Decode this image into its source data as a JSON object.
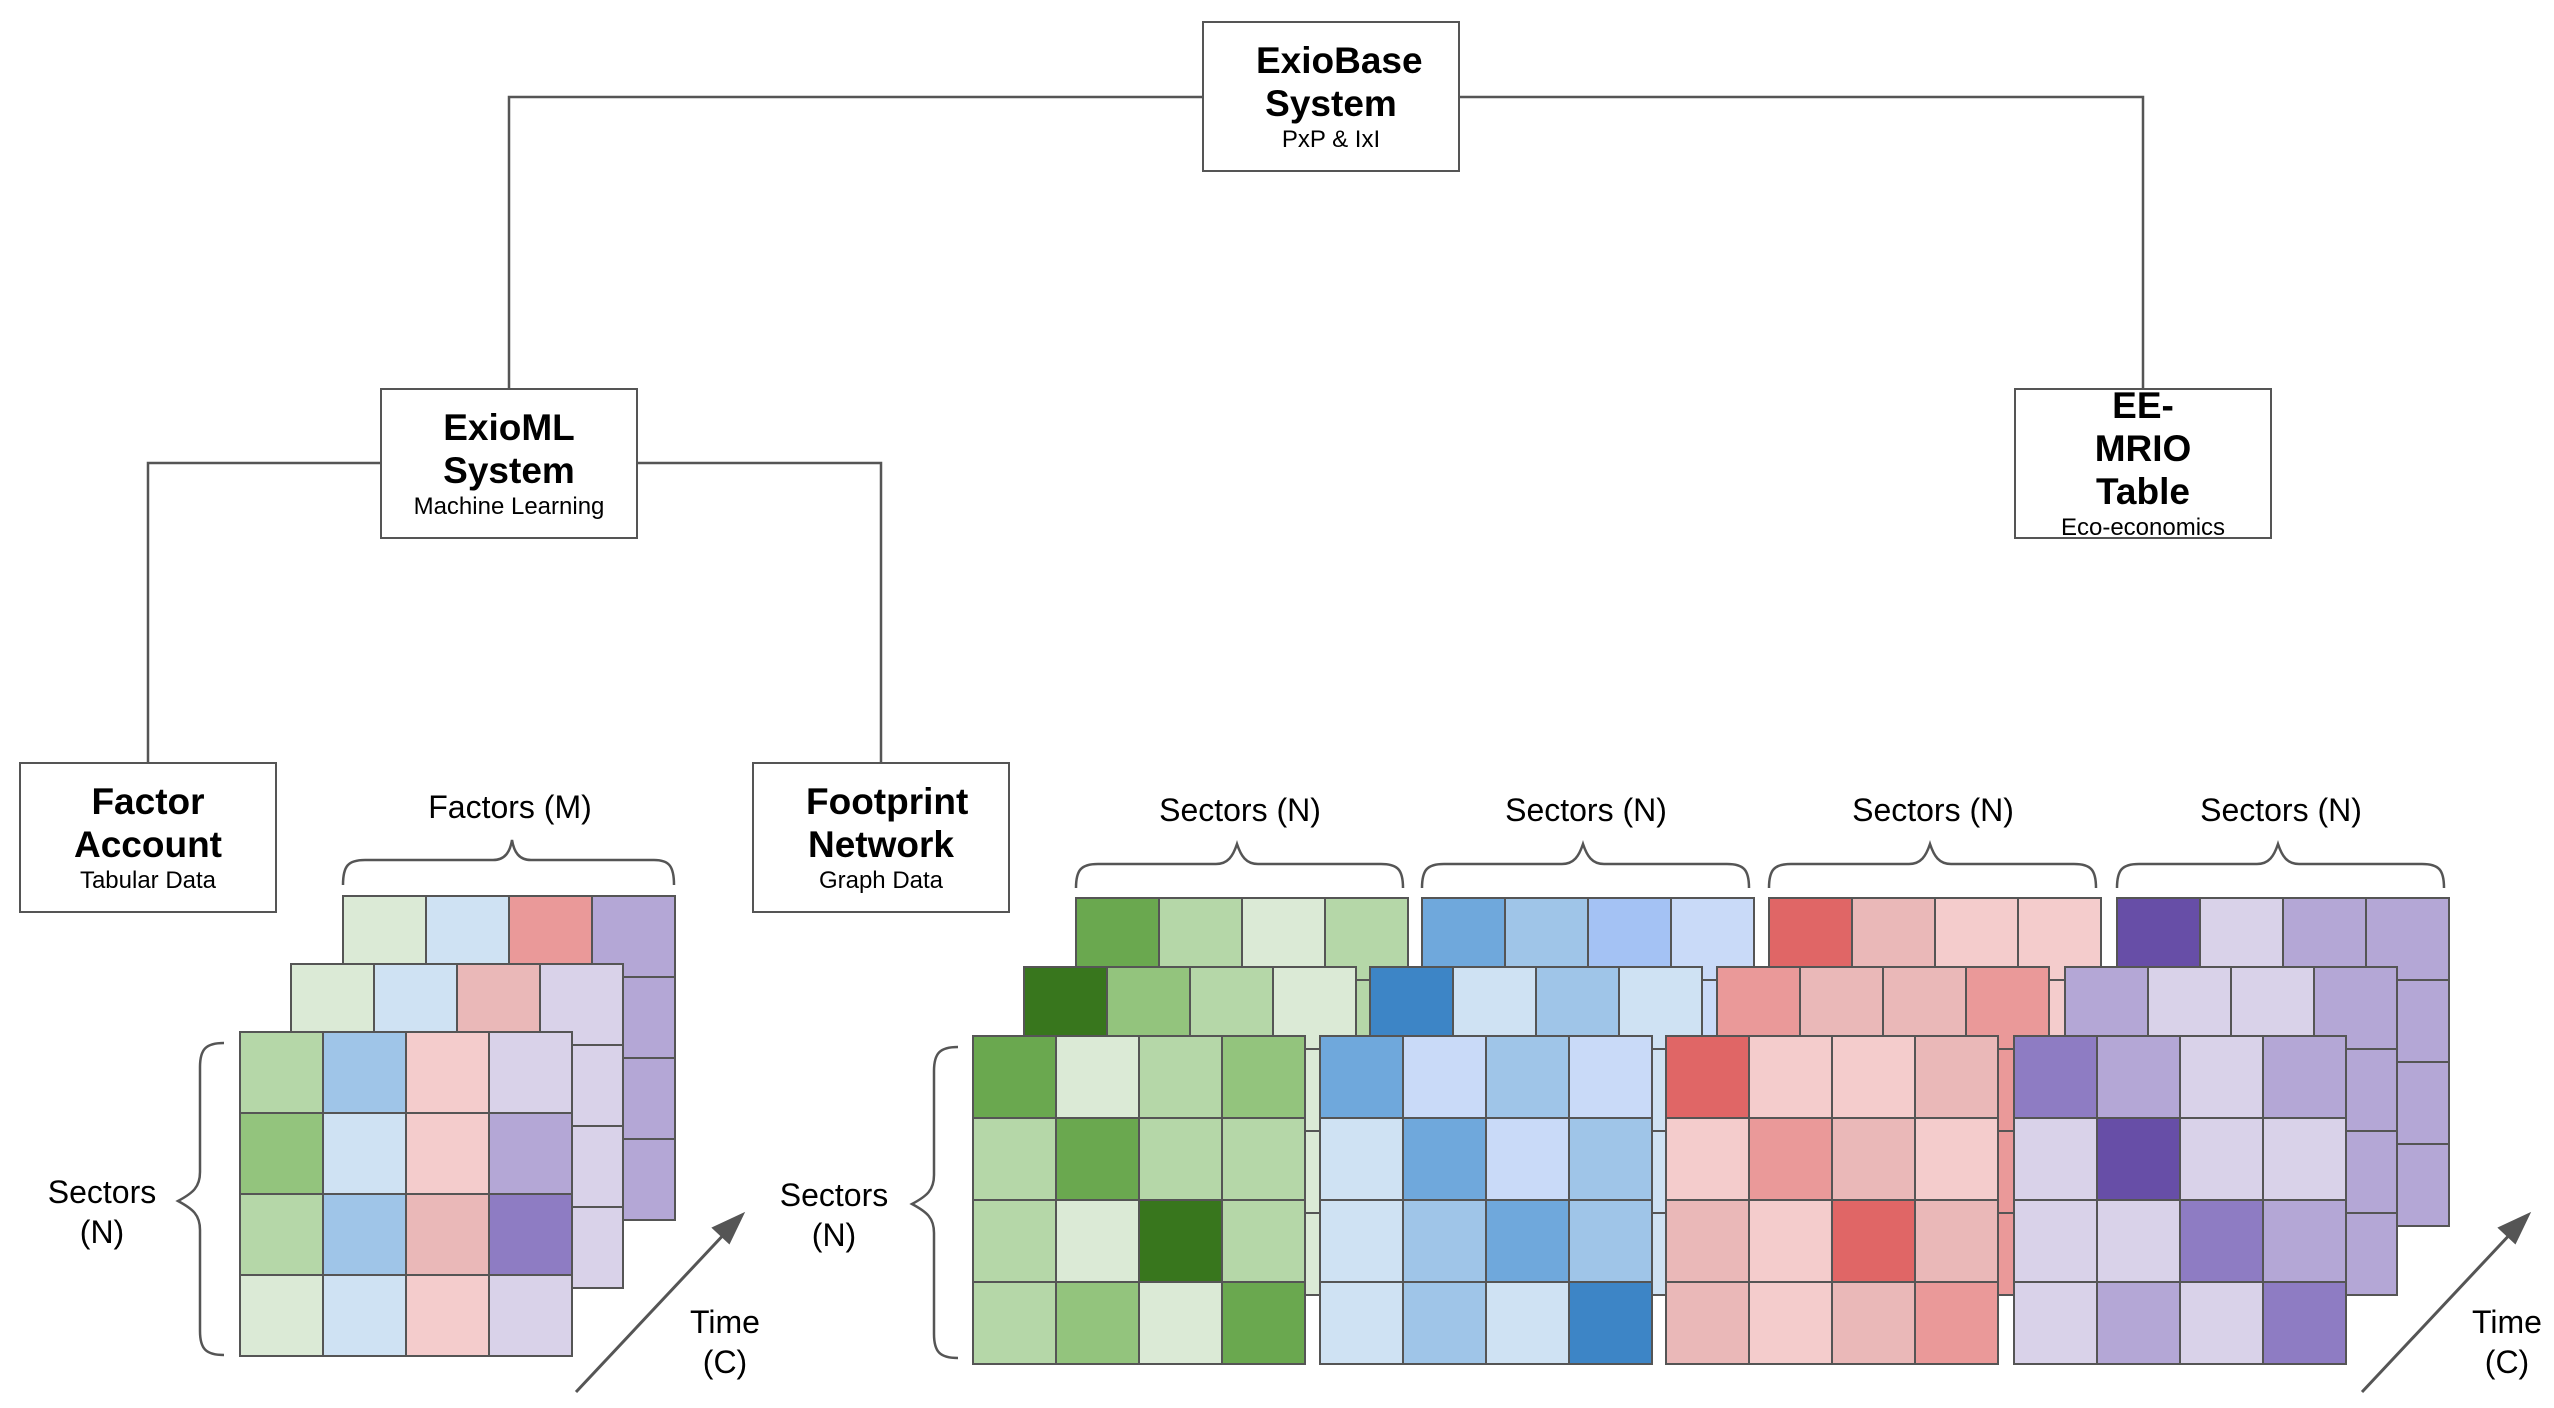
{
  "colors": {
    "line": "#555555",
    "green": [
      "#dbead6",
      "#b5d7a8",
      "#93c47d",
      "#6aa84f",
      "#38761d"
    ],
    "blue": [
      "#cfe2f3",
      "#c9daf8",
      "#9fc5e8",
      "#a4c2f4",
      "#6fa8dc",
      "#3d85c6"
    ],
    "red": [
      "#f4cccc",
      "#eab8b8",
      "#ea9999",
      "#e06666",
      "#cc0000"
    ],
    "purple": [
      "#d9d2e9",
      "#b4a7d6",
      "#8e7cc3",
      "#674ea7"
    ]
  },
  "nodes": {
    "exiobase": {
      "title": "ExioBase System",
      "subtitle": "PxP & IxI"
    },
    "exioml": {
      "title": "ExioML System",
      "subtitle": "Machine Learning"
    },
    "eemrio": {
      "title": "EE-MRIO Table",
      "subtitle": "Eco-economics"
    },
    "factor": {
      "title": "Factor Account",
      "subtitle": "Tabular Data"
    },
    "footprint": {
      "title": "Footprint Network",
      "subtitle": "Graph Data"
    }
  },
  "labels": {
    "factors_m": "Factors (M)",
    "sectors_n": "Sectors (N)",
    "sectors_n_stacked": "Sectors\n(N)",
    "time_c": "Time\n(C)"
  },
  "tabular_front_grid": [
    [
      "green-2",
      "blue-3",
      "red-1",
      "purple-1"
    ],
    [
      "green-3",
      "blue-1",
      "red-1",
      "purple-2"
    ],
    [
      "green-2",
      "blue-3",
      "red-2",
      "purple-3"
    ],
    [
      "green-1",
      "blue-1",
      "red-1",
      "purple-1"
    ]
  ],
  "network_front_grids": [
    [
      [
        "green-4",
        "green-1",
        "green-2",
        "green-3"
      ],
      [
        "green-2",
        "green-4",
        "green-2",
        "green-2"
      ],
      [
        "green-2",
        "green-1",
        "green-5",
        "green-2"
      ],
      [
        "green-2",
        "green-3",
        "green-1",
        "green-4"
      ]
    ],
    [
      [
        "blue-5",
        "blue-2",
        "blue-3",
        "blue-2"
      ],
      [
        "blue-1",
        "blue-5",
        "blue-2",
        "blue-3"
      ],
      [
        "blue-1",
        "blue-3",
        "blue-5",
        "blue-3"
      ],
      [
        "blue-1",
        "blue-3",
        "blue-1",
        "blue-6"
      ]
    ],
    [
      [
        "red-4",
        "red-1",
        "red-1",
        "red-2"
      ],
      [
        "red-1",
        "red-3",
        "red-2",
        "red-1"
      ],
      [
        "red-2",
        "red-1",
        "red-4",
        "red-2"
      ],
      [
        "red-2",
        "red-1",
        "red-2",
        "red-3"
      ]
    ],
    [
      [
        "purple-3",
        "purple-2",
        "purple-1",
        "purple-2"
      ],
      [
        "purple-1",
        "purple-4",
        "purple-1",
        "purple-1"
      ],
      [
        "purple-1",
        "purple-1",
        "purple-3",
        "purple-2"
      ],
      [
        "purple-1",
        "purple-2",
        "purple-1",
        "purple-3"
      ]
    ]
  ]
}
